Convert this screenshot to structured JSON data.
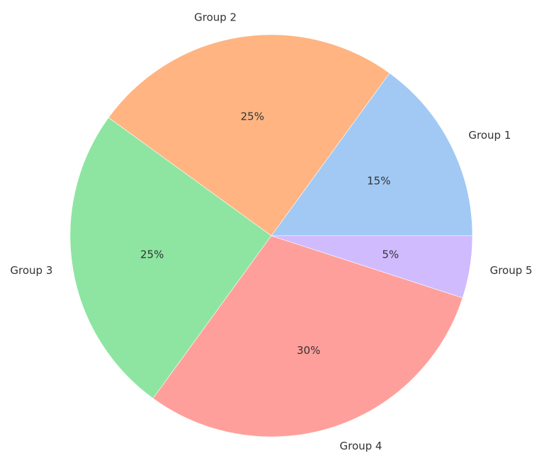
{
  "chart_data": {
    "type": "pie",
    "categories": [
      "Group 1",
      "Group 2",
      "Group 3",
      "Group 4",
      "Group 5"
    ],
    "values": [
      15,
      25,
      25,
      30,
      5
    ],
    "percent_labels": [
      "15%",
      "25%",
      "25%",
      "30%",
      "5%"
    ],
    "colors": [
      "#a1c9f4",
      "#ffb482",
      "#8de5a1",
      "#ff9f9b",
      "#d0bbff"
    ],
    "start_angle_deg": 0,
    "direction": "counterclockwise",
    "title": "",
    "legend": false
  }
}
